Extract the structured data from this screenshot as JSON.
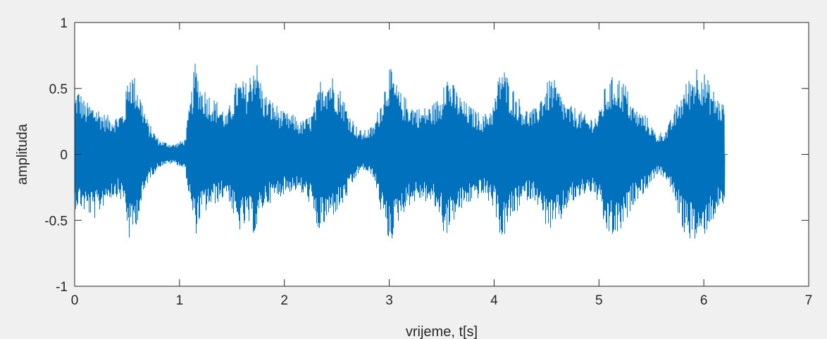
{
  "chart_data": {
    "type": "line",
    "title": "",
    "xlabel": "vrijeme, t[s]",
    "ylabel": "amplituda",
    "xlim": [
      0,
      7
    ],
    "ylim": [
      -1,
      1
    ],
    "xticks": [
      0,
      1,
      2,
      3,
      4,
      5,
      6,
      7
    ],
    "yticks": [
      -1,
      -0.5,
      0,
      0.5,
      1
    ],
    "xtick_labels": [
      "0",
      "1",
      "2",
      "3",
      "4",
      "5",
      "6",
      "7"
    ],
    "ytick_labels": [
      "-1",
      "-0.5",
      "0",
      "0.5",
      "1"
    ],
    "grid": false,
    "series": [
      {
        "color": "#0072bd",
        "signal_end": 6.2,
        "envelope": {
          "t": [
            0.0,
            0.03,
            0.1,
            0.2,
            0.3,
            0.4,
            0.47,
            0.52,
            0.6,
            0.7,
            0.8,
            0.85,
            0.95,
            1.05,
            1.1,
            1.15,
            1.2,
            1.3,
            1.4,
            1.45,
            1.55,
            1.65,
            1.72,
            1.8,
            1.9,
            2.0,
            2.1,
            2.15,
            2.25,
            2.3,
            2.35,
            2.45,
            2.55,
            2.6,
            2.7,
            2.75,
            2.85,
            2.92,
            3.0,
            3.1,
            3.2,
            3.3,
            3.4,
            3.5,
            3.52,
            3.6,
            3.7,
            3.8,
            3.9,
            4.0,
            4.07,
            4.15,
            4.25,
            4.3,
            4.4,
            4.45,
            4.55,
            4.65,
            4.7,
            4.8,
            4.9,
            5.0,
            5.05,
            5.15,
            5.25,
            5.3,
            5.35,
            5.45,
            5.55,
            5.65,
            5.75,
            5.8,
            5.88,
            5.95,
            6.05,
            6.15,
            6.2
          ],
          "pos": [
            0.45,
            0.52,
            0.4,
            0.38,
            0.3,
            0.3,
            0.35,
            0.68,
            0.55,
            0.25,
            0.12,
            0.1,
            0.08,
            0.12,
            0.4,
            0.72,
            0.55,
            0.45,
            0.38,
            0.3,
            0.58,
            0.55,
            0.78,
            0.48,
            0.4,
            0.32,
            0.3,
            0.25,
            0.3,
            0.4,
            0.6,
            0.62,
            0.48,
            0.35,
            0.2,
            0.18,
            0.22,
            0.42,
            0.68,
            0.48,
            0.4,
            0.35,
            0.38,
            0.45,
            0.68,
            0.55,
            0.42,
            0.35,
            0.3,
            0.4,
            0.72,
            0.55,
            0.42,
            0.35,
            0.35,
            0.48,
            0.6,
            0.45,
            0.38,
            0.35,
            0.28,
            0.32,
            0.5,
            0.62,
            0.55,
            0.42,
            0.35,
            0.3,
            0.15,
            0.2,
            0.4,
            0.5,
            0.62,
            0.72,
            0.55,
            0.42,
            0.4
          ],
          "neg": [
            -0.42,
            -0.4,
            -0.45,
            -0.5,
            -0.35,
            -0.32,
            -0.38,
            -0.68,
            -0.5,
            -0.2,
            -0.1,
            -0.08,
            -0.07,
            -0.12,
            -0.4,
            -0.62,
            -0.48,
            -0.4,
            -0.35,
            -0.3,
            -0.6,
            -0.55,
            -0.62,
            -0.4,
            -0.35,
            -0.3,
            -0.28,
            -0.3,
            -0.38,
            -0.6,
            -0.58,
            -0.48,
            -0.4,
            -0.32,
            -0.15,
            -0.12,
            -0.18,
            -0.45,
            -0.7,
            -0.48,
            -0.38,
            -0.35,
            -0.38,
            -0.5,
            -0.65,
            -0.52,
            -0.42,
            -0.35,
            -0.32,
            -0.42,
            -0.68,
            -0.52,
            -0.4,
            -0.35,
            -0.35,
            -0.5,
            -0.6,
            -0.5,
            -0.4,
            -0.35,
            -0.28,
            -0.38,
            -0.6,
            -0.65,
            -0.55,
            -0.42,
            -0.35,
            -0.28,
            -0.15,
            -0.2,
            -0.45,
            -0.6,
            -0.65,
            -0.7,
            -0.55,
            -0.42,
            -0.4
          ]
        }
      }
    ]
  }
}
